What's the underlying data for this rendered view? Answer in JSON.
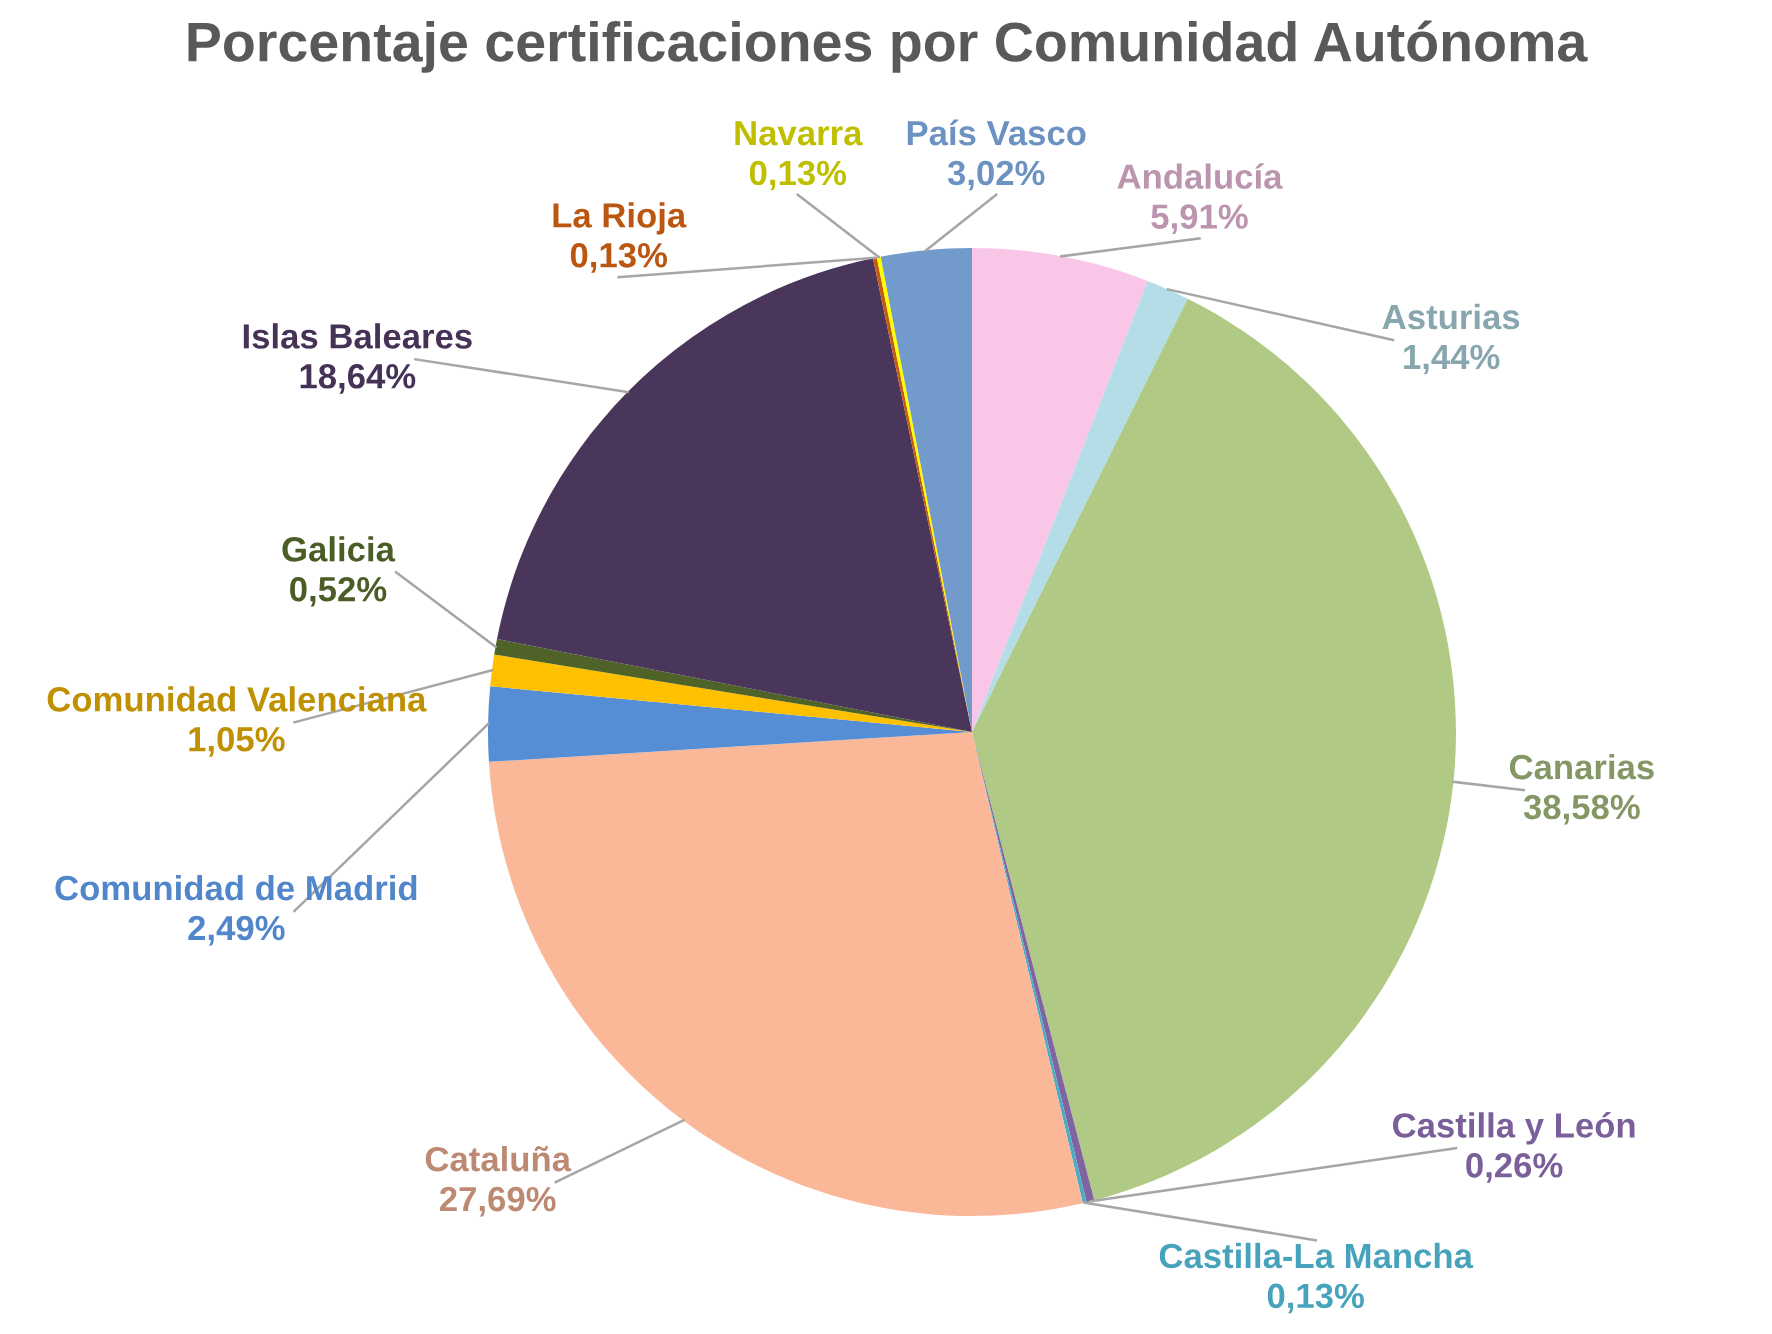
{
  "chart_data": {
    "type": "pie",
    "title": "Porcentaje certificaciones por Comunidad Autónoma",
    "categories": [
      "Andalucía",
      "Asturias",
      "Canarias",
      "Castilla y León",
      "Castilla-La Mancha",
      "Cataluña",
      "Comunidad de Madrid",
      "Comunidad Valenciana",
      "Galicia",
      "Islas Baleares",
      "La Rioja",
      "Navarra",
      "País Vasco"
    ],
    "values": [
      5.91,
      1.44,
      38.58,
      0.26,
      0.13,
      27.69,
      2.49,
      1.05,
      0.52,
      18.64,
      0.13,
      0.13,
      3.02
    ],
    "value_labels": [
      "5,91%",
      "1,44%",
      "38,58%",
      "0,26%",
      "0,13%",
      "27,69%",
      "2,49%",
      "1,05%",
      "0,52%",
      "18,64%",
      "0,13%",
      "0,13%",
      "3,02%"
    ],
    "colors": [
      "#f9c6e8",
      "#b4dde8",
      "#b0c985",
      "#8064a2",
      "#4bacc6",
      "#fbb899",
      "#558ed5",
      "#ffc000",
      "#4f6228",
      "#4a355b",
      "#c55a11",
      "#ffff00",
      "#729acb"
    ],
    "legend": false
  }
}
